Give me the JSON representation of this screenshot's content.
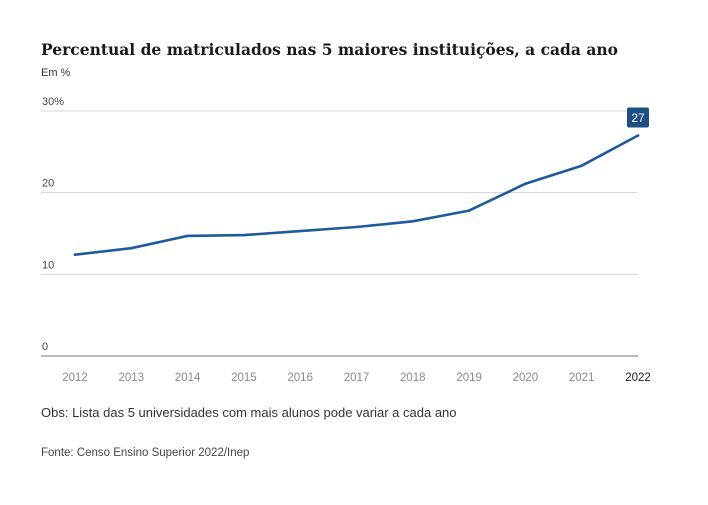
{
  "chart_data": {
    "type": "line",
    "title": "Percentual de matriculados nas 5 maiores instituições, a cada ano",
    "subtitle": "Em %",
    "x": [
      "2012",
      "2013",
      "2014",
      "2015",
      "2016",
      "2017",
      "2018",
      "2019",
      "2020",
      "2021",
      "2022"
    ],
    "series": [
      {
        "values": [
          12.4,
          13.2,
          14.7,
          14.8,
          15.3,
          15.8,
          16.5,
          17.8,
          21.1,
          23.3,
          27.0
        ]
      }
    ],
    "y_ticks": [
      "0",
      "10",
      "20",
      "30%"
    ],
    "y_tick_values": [
      0,
      10,
      20,
      30
    ],
    "ylim": [
      0,
      30
    ],
    "grid": true,
    "highlight_label": "27",
    "line_color": "#1f5a9c",
    "highlight_x_label_color": "#222222"
  },
  "note": "Obs: Lista das 5 universidades com mais alunos pode variar a cada ano",
  "source": "Fonte: Censo Ensino Superior 2022/Inep"
}
